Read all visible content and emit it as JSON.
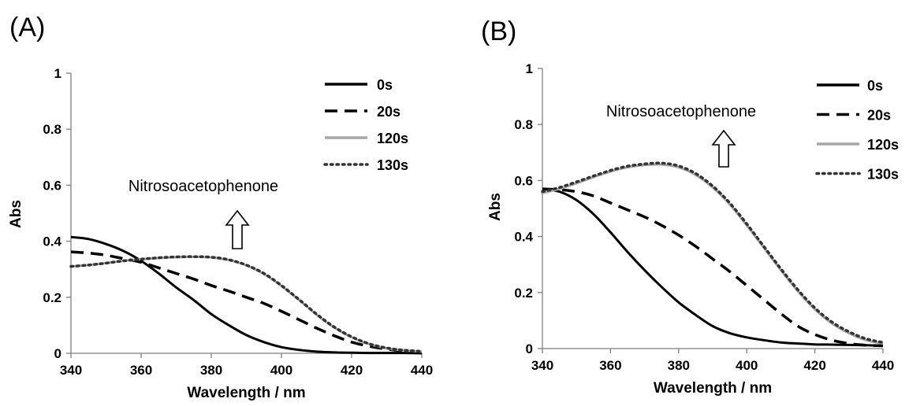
{
  "chart_data": [
    {
      "type": "line",
      "panel": "(A)",
      "xlabel": "Wavelength / nm",
      "ylabel": "Abs",
      "xlim": [
        340,
        440
      ],
      "ylim": [
        0,
        1
      ],
      "xticks": [
        340,
        360,
        380,
        400,
        420,
        440
      ],
      "yticks": [
        0,
        0.2,
        0.4,
        0.6,
        0.8,
        1
      ],
      "ytick_labels": [
        "0",
        "0.2",
        "0.4",
        "0.6",
        "0.8",
        "1"
      ],
      "grid": false,
      "legend_position": "top-right",
      "annotation": "Nitrosoacetophenone",
      "annotation_arrow": "up",
      "x": [
        340,
        345,
        350,
        355,
        360,
        365,
        370,
        375,
        380,
        385,
        390,
        395,
        400,
        405,
        410,
        415,
        420,
        425,
        430,
        435,
        440
      ],
      "series": [
        {
          "name": "0s",
          "style": "solid",
          "color": "#000000",
          "values": [
            0.415,
            0.408,
            0.39,
            0.365,
            0.33,
            0.285,
            0.235,
            0.19,
            0.14,
            0.1,
            0.065,
            0.04,
            0.022,
            0.012,
            0.006,
            0.003,
            0.002,
            0.001,
            0.001,
            0.001,
            0.0
          ]
        },
        {
          "name": "20s",
          "style": "dashed",
          "color": "#000000",
          "values": [
            0.362,
            0.358,
            0.35,
            0.338,
            0.325,
            0.305,
            0.285,
            0.265,
            0.242,
            0.222,
            0.2,
            0.178,
            0.15,
            0.12,
            0.09,
            0.063,
            0.04,
            0.025,
            0.015,
            0.008,
            0.005
          ]
        },
        {
          "name": "120s",
          "style": "solid",
          "color": "#a6a6a6",
          "values": [
            0.31,
            0.315,
            0.322,
            0.33,
            0.336,
            0.34,
            0.343,
            0.344,
            0.342,
            0.333,
            0.314,
            0.283,
            0.24,
            0.19,
            0.138,
            0.092,
            0.057,
            0.033,
            0.018,
            0.01,
            0.006
          ]
        },
        {
          "name": "130s",
          "style": "dotted",
          "color": "#333333",
          "values": [
            0.31,
            0.315,
            0.322,
            0.33,
            0.336,
            0.341,
            0.344,
            0.345,
            0.343,
            0.334,
            0.315,
            0.285,
            0.242,
            0.192,
            0.14,
            0.094,
            0.059,
            0.034,
            0.019,
            0.011,
            0.007
          ]
        }
      ]
    },
    {
      "type": "line",
      "panel": "(B)",
      "xlabel": "Wavelength / nm",
      "ylabel": "Abs",
      "xlim": [
        340,
        440
      ],
      "ylim": [
        0,
        1
      ],
      "xticks": [
        340,
        360,
        380,
        400,
        420,
        440
      ],
      "yticks": [
        0,
        0.2,
        0.4,
        0.6,
        0.8,
        1
      ],
      "ytick_labels": [
        "0",
        "0.2",
        "0.4",
        "0.6",
        "0.8",
        "1"
      ],
      "grid": false,
      "legend_position": "top-right",
      "annotation": "Nitrosoacetophenone",
      "annotation_arrow": "up",
      "x": [
        340,
        345,
        350,
        355,
        360,
        365,
        370,
        375,
        380,
        385,
        390,
        395,
        400,
        405,
        410,
        415,
        420,
        425,
        430,
        435,
        440
      ],
      "series": [
        {
          "name": "0s",
          "style": "solid",
          "color": "#000000",
          "values": [
            0.57,
            0.56,
            0.53,
            0.48,
            0.415,
            0.345,
            0.28,
            0.22,
            0.165,
            0.12,
            0.08,
            0.055,
            0.04,
            0.03,
            0.022,
            0.018,
            0.015,
            0.014,
            0.013,
            0.012,
            0.01
          ]
        },
        {
          "name": "20s",
          "style": "dashed",
          "color": "#000000",
          "values": [
            0.57,
            0.567,
            0.56,
            0.545,
            0.52,
            0.495,
            0.47,
            0.44,
            0.405,
            0.365,
            0.32,
            0.275,
            0.225,
            0.175,
            0.125,
            0.08,
            0.05,
            0.03,
            0.018,
            0.012,
            0.01
          ]
        },
        {
          "name": "120s",
          "style": "solid",
          "color": "#a6a6a6",
          "values": [
            0.555,
            0.57,
            0.59,
            0.612,
            0.632,
            0.647,
            0.655,
            0.657,
            0.647,
            0.62,
            0.575,
            0.515,
            0.44,
            0.36,
            0.28,
            0.205,
            0.14,
            0.09,
            0.055,
            0.03,
            0.018
          ]
        },
        {
          "name": "130s",
          "style": "dotted",
          "color": "#333333",
          "values": [
            0.56,
            0.575,
            0.595,
            0.616,
            0.636,
            0.651,
            0.659,
            0.662,
            0.652,
            0.625,
            0.58,
            0.52,
            0.445,
            0.365,
            0.285,
            0.21,
            0.145,
            0.095,
            0.06,
            0.035,
            0.022
          ]
        }
      ]
    }
  ]
}
